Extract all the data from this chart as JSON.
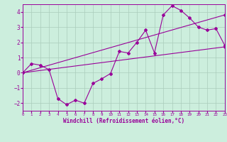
{
  "xlabel": "Windchill (Refroidissement éolien,°C)",
  "bg_color": "#cceedd",
  "grid_color": "#aaccbb",
  "line_color": "#990099",
  "xlim": [
    0,
    23
  ],
  "ylim": [
    -2.5,
    4.5
  ],
  "xticks": [
    0,
    1,
    2,
    3,
    4,
    5,
    6,
    7,
    8,
    9,
    10,
    11,
    12,
    13,
    14,
    15,
    16,
    17,
    18,
    19,
    20,
    21,
    22,
    23
  ],
  "yticks": [
    -2,
    -1,
    0,
    1,
    2,
    3,
    4
  ],
  "line1_x": [
    0,
    1,
    2,
    3,
    4,
    5,
    6,
    7,
    8,
    9,
    10,
    11,
    12,
    13,
    14,
    15,
    16,
    17,
    18,
    19,
    20,
    21,
    22,
    23
  ],
  "line1_y": [
    0.0,
    0.6,
    0.5,
    0.2,
    -1.7,
    -2.1,
    -1.8,
    -2.0,
    -0.7,
    -0.4,
    -0.05,
    1.4,
    1.3,
    2.0,
    2.8,
    1.3,
    3.8,
    4.4,
    4.1,
    3.6,
    3.0,
    2.8,
    2.9,
    1.8
  ],
  "line2_x": [
    0,
    23
  ],
  "line2_y": [
    0.0,
    3.8
  ],
  "line3_x": [
    0,
    23
  ],
  "line3_y": [
    0.0,
    1.7
  ]
}
